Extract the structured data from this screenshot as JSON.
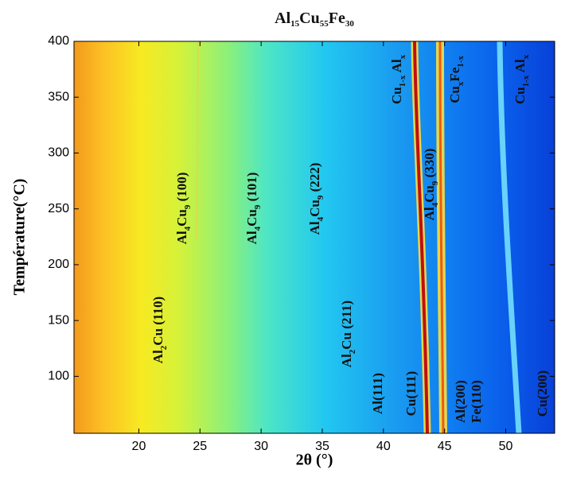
{
  "chart_data": {
    "type": "heatmap",
    "title": [
      "Al",
      "15",
      "Cu",
      "55",
      "Fe",
      "30"
    ],
    "x_label": "2θ (°)",
    "y_label": "Température(°C)",
    "xlim": [
      14.7,
      54.0
    ],
    "ylim": [
      49,
      400
    ],
    "xticks": [
      20,
      25,
      30,
      35,
      40,
      45,
      50
    ],
    "yticks": [
      100,
      150,
      200,
      250,
      300,
      350,
      400
    ],
    "annotations": [
      [
        "Al",
        "2",
        "Cu (110)"
      ],
      [
        "Al",
        "4",
        "Cu",
        "9",
        " (100)"
      ],
      [
        "Al",
        "4",
        "Cu",
        "9",
        " (101)"
      ],
      [
        "Al",
        "4",
        "Cu",
        "9",
        " (222)"
      ],
      [
        "Al",
        "2",
        "Cu (211)"
      ],
      [
        "Al(111)"
      ],
      [
        "Cu(111)"
      ],
      [
        "Cu",
        "1-x",
        " Al",
        "x"
      ],
      [
        "Al",
        "4",
        "Cu",
        "9",
        " (330)"
      ],
      [
        "Cu",
        "x",
        "Fe",
        "1-x"
      ],
      [
        "Cu",
        "1-x",
        " Al",
        "x"
      ],
      [
        "Al(200)"
      ],
      [
        "Fe(110)"
      ],
      [
        "Cu(200)"
      ]
    ]
  }
}
